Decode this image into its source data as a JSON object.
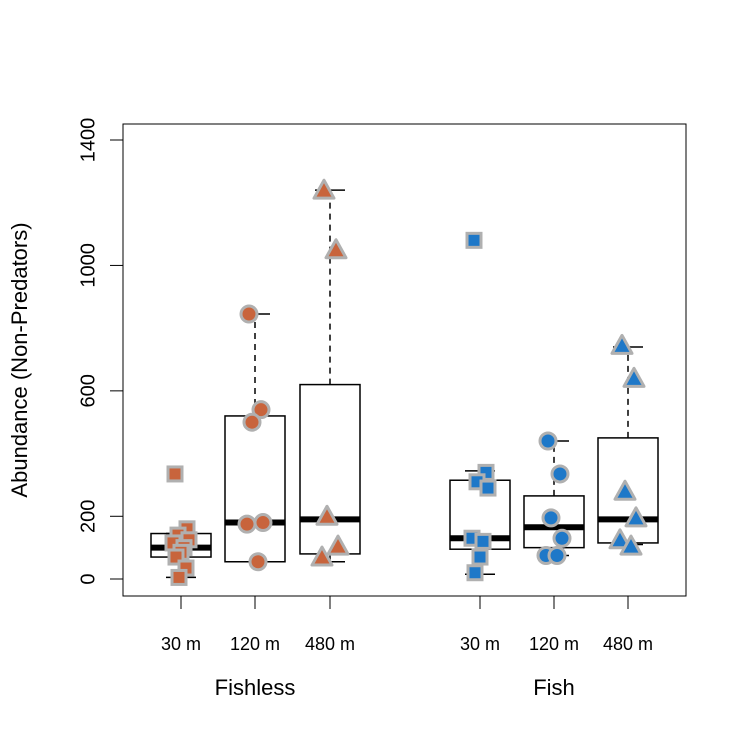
{
  "chart_data": {
    "type": "box",
    "ylabel": "Abundance (Non-Predators)",
    "ylim": [
      -100,
      1460
    ],
    "yticks": [
      0,
      200,
      600,
      1000,
      1400
    ],
    "groups": [
      {
        "name": "Fishless",
        "color": "#c8643c",
        "edge": "#b0b0b0"
      },
      {
        "name": "Fish",
        "color": "#1e78c8",
        "edge": "#b0b0b0"
      }
    ],
    "boxes": [
      {
        "group": "Fishless",
        "label": "30 m",
        "shape": "square",
        "whisker_low": 5,
        "q1": 70,
        "median": 100,
        "q3": 145,
        "whisker_high": 145,
        "points": [
          335,
          160,
          140,
          125,
          115,
          100,
          85,
          70,
          35,
          5
        ]
      },
      {
        "group": "Fishless",
        "label": "120 m",
        "shape": "circle",
        "whisker_low": 55,
        "q1": 55,
        "median": 180,
        "q3": 520,
        "whisker_high": 845,
        "points": [
          845,
          540,
          500,
          180,
          175,
          55
        ]
      },
      {
        "group": "Fishless",
        "label": "480 m",
        "shape": "triangle",
        "whisker_low": 55,
        "q1": 80,
        "median": 190,
        "q3": 620,
        "whisker_high": 1240,
        "points": [
          1240,
          1050,
          200,
          105,
          70
        ]
      },
      {
        "group": "Fish",
        "label": "30 m",
        "shape": "square",
        "whisker_low": 15,
        "q1": 95,
        "median": 130,
        "q3": 315,
        "whisker_high": 345,
        "points": [
          1080,
          340,
          310,
          290,
          130,
          120,
          70,
          20
        ]
      },
      {
        "group": "Fish",
        "label": "120 m",
        "shape": "circle",
        "whisker_low": 75,
        "q1": 100,
        "median": 165,
        "q3": 265,
        "whisker_high": 440,
        "points": [
          440,
          335,
          195,
          130,
          75,
          75
        ]
      },
      {
        "group": "Fish",
        "label": "480 m",
        "shape": "triangle",
        "whisker_low": 110,
        "q1": 115,
        "median": 190,
        "q3": 450,
        "whisker_high": 740,
        "points": [
          745,
          640,
          280,
          195,
          125,
          105
        ]
      }
    ]
  }
}
